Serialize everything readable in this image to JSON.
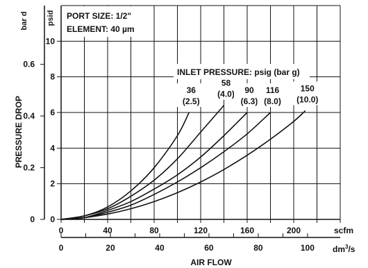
{
  "chart_data": {
    "type": "line",
    "info": {
      "port_label": "PORT SIZE: 1/2\"",
      "element_label": "ELEMENT: 40 µm"
    },
    "y_axis": {
      "title": "PRESSURE DROP",
      "psid_unit": "psid",
      "bar_unit": "bar d",
      "psid_range": [
        0,
        12
      ],
      "psid_ticks": [
        "0",
        "2",
        "4",
        "6",
        "8",
        "10"
      ],
      "bar_ticks": [
        "0",
        "0.2",
        "0.4",
        "0.6"
      ]
    },
    "x_axis": {
      "title": "AIR FLOW",
      "scfm_unit": "scfm",
      "dm3s_unit_base": "dm",
      "dm3s_unit_sup": "3",
      "dm3s_unit_tail": "/s",
      "scfm_range": [
        0,
        240
      ],
      "scfm_ticks": [
        "0",
        "40",
        "80",
        "120",
        "160",
        "200"
      ],
      "dm3s_ticks": [
        "0",
        "20",
        "40",
        "60",
        "80",
        "100"
      ]
    },
    "legend_title": "INLET PRESSURE: psig (bar g)",
    "grid": true,
    "series": [
      {
        "name": "36",
        "sub": "(2.5)",
        "x": [
          0,
          20,
          40,
          60,
          80,
          100,
          110
        ],
        "y": [
          0,
          0.2,
          0.7,
          1.6,
          2.9,
          4.7,
          6.0
        ]
      },
      {
        "name": "58",
        "sub": "(4.0)",
        "x": [
          0,
          20,
          40,
          60,
          80,
          100,
          120,
          140
        ],
        "y": [
          0,
          0.2,
          0.6,
          1.3,
          2.2,
          3.4,
          4.9,
          6.4
        ]
      },
      {
        "name": "90",
        "sub": "(6.3)",
        "x": [
          0,
          20,
          40,
          60,
          80,
          100,
          120,
          140,
          160
        ],
        "y": [
          0,
          0.1,
          0.5,
          1.0,
          1.7,
          2.5,
          3.5,
          4.7,
          6.0
        ]
      },
      {
        "name": "116",
        "sub": "(8.0)",
        "x": [
          0,
          20,
          40,
          60,
          80,
          100,
          120,
          140,
          160,
          180
        ],
        "y": [
          0,
          0.1,
          0.4,
          0.8,
          1.4,
          2.1,
          2.9,
          3.8,
          4.8,
          6.0
        ]
      },
      {
        "name": "150",
        "sub": "(10.0)",
        "x": [
          0,
          20,
          40,
          60,
          80,
          100,
          120,
          140,
          160,
          180,
          200,
          210
        ],
        "y": [
          0,
          0.1,
          0.3,
          0.6,
          1.0,
          1.5,
          2.1,
          2.8,
          3.6,
          4.5,
          5.5,
          6.1
        ]
      }
    ]
  }
}
